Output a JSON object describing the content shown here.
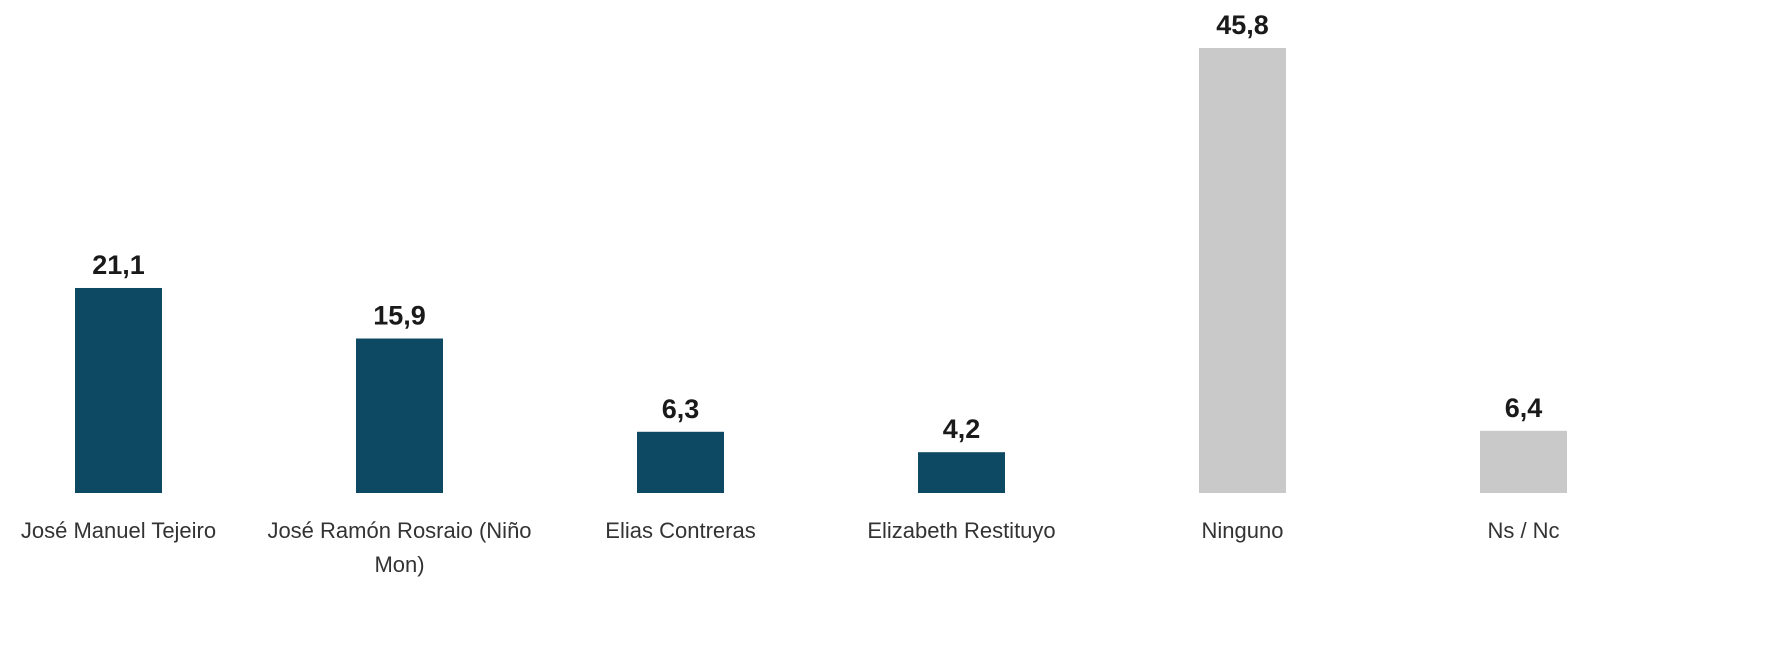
{
  "chart_data": {
    "type": "bar",
    "categories": [
      "José Manuel Tejeiro",
      "José Ramón Rosraio (Niño Mon)",
      "Elias Contreras",
      "Elizabeth Restituyo",
      "Ninguno",
      "Ns / Nc"
    ],
    "values": [
      21.1,
      15.9,
      6.3,
      4.2,
      45.8,
      6.4
    ],
    "value_labels": [
      "21,1",
      "15,9",
      "6,3",
      "4,2",
      "45,8",
      "6,4"
    ],
    "colors": [
      "#0d4963",
      "#0d4963",
      "#0d4963",
      "#0d4963",
      "#c9c9c9",
      "#c9c9c9"
    ]
  }
}
